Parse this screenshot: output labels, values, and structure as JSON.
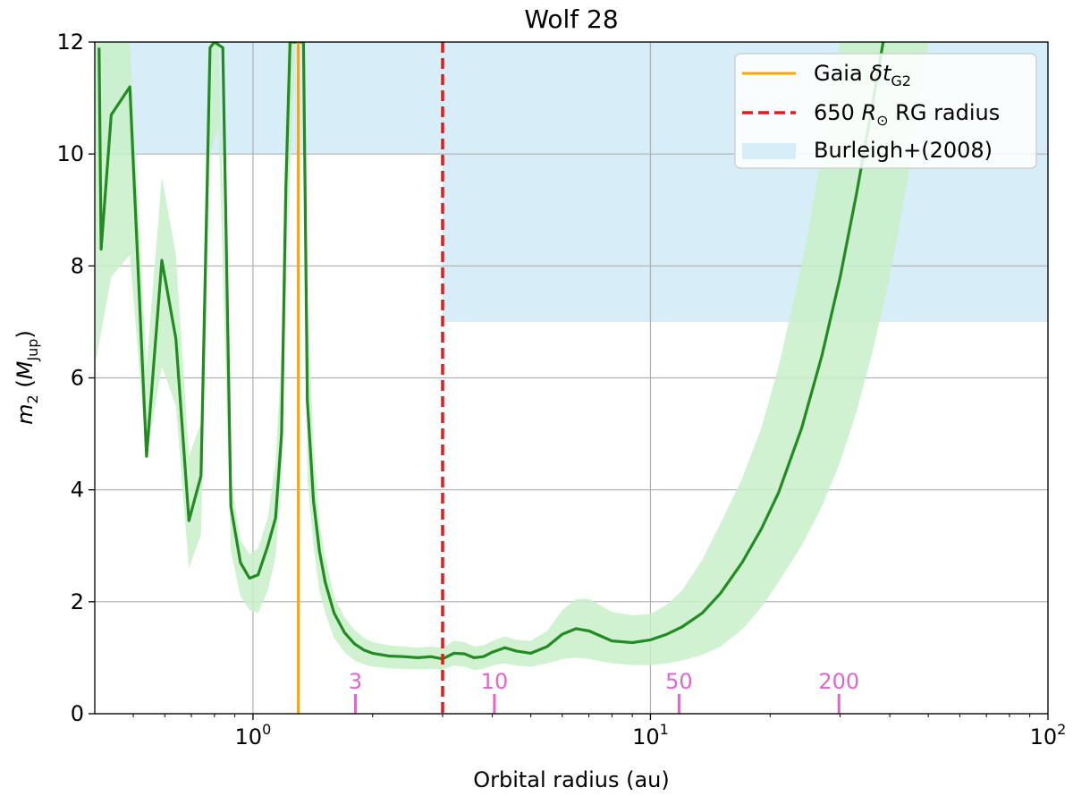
{
  "chart_data": {
    "type": "line",
    "title": "Wolf 28",
    "xlabel": "Orbital radius (au)",
    "ylabel": "m₂ (M_Jup)",
    "ylabel_parts": {
      "m": "m",
      "m_sub": "2",
      "open": " (",
      "M": "M",
      "M_sub": "Jup",
      "close": ")"
    },
    "xscale": "log",
    "xlim": [
      0.4,
      100
    ],
    "ylim": [
      0,
      12
    ],
    "grid": true,
    "x_ticks": [
      {
        "value": 1,
        "base": "10",
        "exp": "0"
      },
      {
        "value": 10,
        "base": "10",
        "exp": "1"
      },
      {
        "value": 100,
        "base": "10",
        "exp": "2"
      }
    ],
    "y_ticks": [
      0,
      2,
      4,
      6,
      8,
      10,
      12
    ],
    "legend": {
      "position": "top-right",
      "entries": [
        {
          "label": "Gaia δt_G2",
          "parts": [
            "Gaia ",
            "δt",
            "G2"
          ],
          "style": "line",
          "color": "#ffa500"
        },
        {
          "label": "650 R⊙ RG radius",
          "parts": [
            "650 ",
            "R",
            "⊙",
            " RG radius"
          ],
          "style": "dashed",
          "color": "#e41a1c"
        },
        {
          "label": "Burleigh+(2008)",
          "parts": [
            "Burleigh+(2008)"
          ],
          "style": "patch",
          "color": "#d7edf7"
        }
      ]
    },
    "series": [
      {
        "name": "",
        "color": "#228b22",
        "x": [
          0.41,
          0.415,
          0.44,
          0.49,
          0.54,
          0.59,
          0.64,
          0.69,
          0.74,
          0.78,
          0.8,
          0.84,
          0.88,
          0.93,
          0.98,
          1.03,
          1.09,
          1.14,
          1.18,
          1.21,
          1.24,
          1.27,
          1.31,
          1.34,
          1.37,
          1.42,
          1.47,
          1.52,
          1.6,
          1.7,
          1.8,
          1.9,
          2.0,
          2.2,
          2.4,
          2.6,
          2.8,
          3.0,
          3.2,
          3.4,
          3.6,
          3.8,
          4.0,
          4.3,
          4.6,
          5.0,
          5.5,
          6.0,
          6.5,
          7.0,
          8.0,
          9.0,
          10.0,
          11.0,
          12.0,
          13.5,
          15.0,
          17.0,
          19.0,
          21.0,
          24.0,
          27.0,
          30.0,
          33.0,
          36.0,
          38.5
        ],
        "y": [
          11.9,
          8.3,
          10.7,
          11.2,
          4.6,
          8.1,
          6.7,
          3.45,
          4.25,
          11.9,
          12.0,
          11.9,
          3.7,
          2.7,
          2.42,
          2.48,
          3.0,
          3.5,
          5.0,
          9.4,
          12.0,
          12.0,
          12.0,
          12.0,
          5.6,
          3.8,
          2.9,
          2.35,
          1.8,
          1.45,
          1.25,
          1.14,
          1.08,
          1.03,
          1.02,
          1.0,
          1.02,
          0.98,
          1.08,
          1.07,
          1.0,
          1.02,
          1.1,
          1.18,
          1.12,
          1.08,
          1.2,
          1.42,
          1.52,
          1.48,
          1.3,
          1.27,
          1.32,
          1.42,
          1.55,
          1.8,
          2.15,
          2.7,
          3.3,
          3.95,
          5.1,
          6.4,
          7.8,
          9.3,
          10.8,
          12.0
        ]
      }
    ],
    "uncertainty_band": {
      "color": "#c8f0c8",
      "x": [
        0.4,
        0.44,
        0.49,
        0.54,
        0.59,
        0.64,
        0.69,
        0.74,
        0.78,
        0.82,
        0.88,
        0.93,
        0.98,
        1.03,
        1.09,
        1.14,
        1.18,
        1.22,
        1.28,
        1.34,
        1.37,
        1.42,
        1.47,
        1.52,
        1.6,
        1.7,
        1.8,
        1.9,
        2.0,
        2.2,
        2.4,
        2.6,
        2.8,
        3.0,
        3.2,
        3.4,
        3.6,
        3.8,
        4.0,
        4.3,
        4.6,
        5.0,
        5.5,
        6.0,
        6.5,
        7.0,
        8.0,
        9.0,
        10.0,
        11.0,
        12.0,
        13.5,
        15.0,
        17.0,
        19.0,
        21.0,
        24.0,
        27.0,
        30.0,
        33.0,
        36.0,
        40.0,
        45.0,
        50.0
      ],
      "upper": [
        12,
        12,
        12,
        6.2,
        9.6,
        8.2,
        4.6,
        5.2,
        12,
        12,
        4.2,
        3.1,
        2.85,
        2.95,
        3.5,
        4.5,
        6.5,
        12,
        12,
        12,
        7.5,
        4.8,
        3.4,
        2.8,
        2.1,
        1.72,
        1.5,
        1.36,
        1.28,
        1.22,
        1.2,
        1.18,
        1.2,
        1.18,
        1.3,
        1.28,
        1.2,
        1.22,
        1.3,
        1.38,
        1.32,
        1.3,
        1.48,
        1.85,
        2.05,
        2.05,
        1.82,
        1.76,
        1.78,
        1.95,
        2.2,
        2.75,
        3.4,
        4.2,
        5.1,
        6.2,
        8.0,
        10.0,
        12,
        12,
        12,
        12,
        12,
        12
      ],
      "lower": [
        6.2,
        7.8,
        8.2,
        4.6,
        6.2,
        5.5,
        2.6,
        3.2,
        10.0,
        10.5,
        2.9,
        2.1,
        1.85,
        1.8,
        2.2,
        2.8,
        4.2,
        8.5,
        12,
        12,
        4.2,
        3.0,
        2.2,
        1.8,
        1.35,
        1.1,
        0.95,
        0.88,
        0.84,
        0.81,
        0.8,
        0.79,
        0.8,
        0.79,
        0.86,
        0.84,
        0.78,
        0.8,
        0.86,
        0.9,
        0.86,
        0.84,
        0.9,
        0.98,
        1.0,
        0.98,
        0.9,
        0.87,
        0.87,
        0.9,
        0.95,
        1.05,
        1.2,
        1.5,
        1.9,
        2.35,
        3.0,
        3.7,
        4.5,
        5.4,
        6.4,
        7.8,
        9.8,
        12
      ]
    },
    "shaded_regions": [
      {
        "label": "Burleigh+(2008)",
        "color": "#d7edf7",
        "x": [
          0.4,
          3.0
        ],
        "y": [
          10,
          12
        ]
      },
      {
        "label": "Burleigh+(2008)",
        "color": "#d7edf7",
        "x": [
          3.0,
          100
        ],
        "y": [
          7,
          12
        ]
      }
    ],
    "vertical_lines": [
      {
        "label": "Gaia δt_G2",
        "x": 1.3,
        "color": "#ffa500",
        "style": "solid"
      },
      {
        "label": "650 R⊙ RG radius",
        "x": 3.0,
        "color": "#e41a1c",
        "style": "dashed"
      }
    ],
    "period_markers": {
      "color": "#e066cc",
      "items": [
        {
          "label": "3",
          "x": 1.81
        },
        {
          "label": "10",
          "x": 4.05
        },
        {
          "label": "50",
          "x": 11.8
        },
        {
          "label": "200",
          "x": 29.8
        }
      ]
    }
  }
}
